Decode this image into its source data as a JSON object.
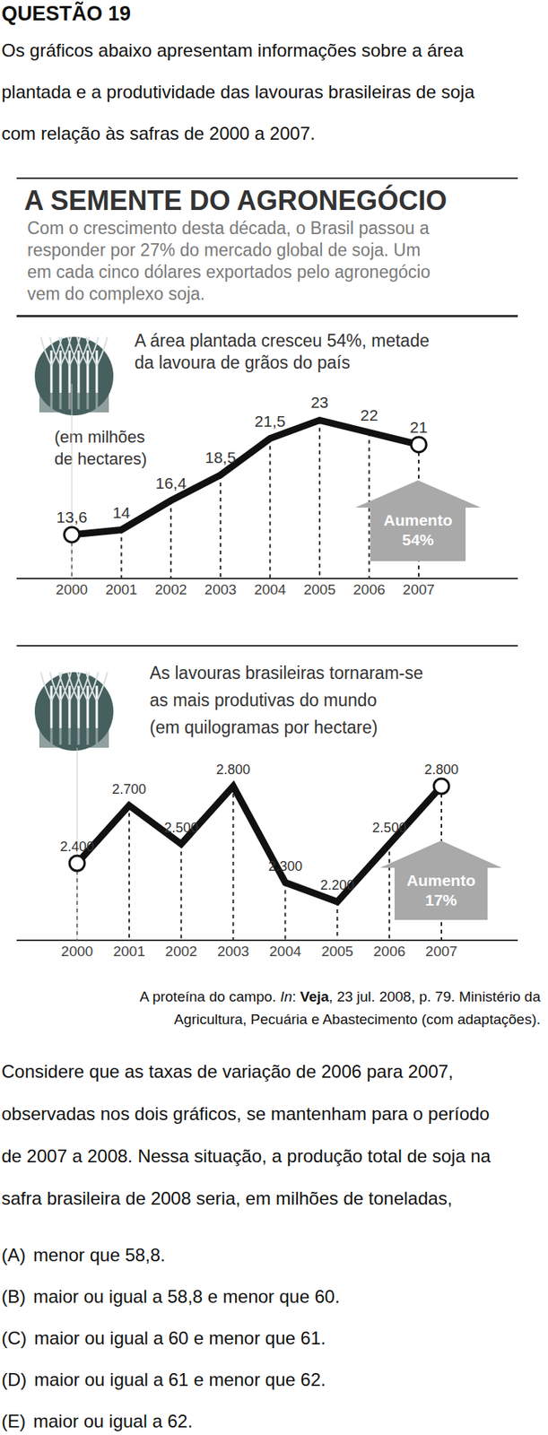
{
  "question": {
    "number": "QUESTÃO 19",
    "intro_lines": [
      "Os gráficos abaixo apresentam informações sobre a área",
      "plantada e a produtividade das lavouras brasileiras de soja",
      "com relação às safras de 2000 a 2007."
    ],
    "prompt_lines": [
      "Considere que as taxas de variação de 2006 para 2007,",
      "observadas nos dois gráficos, se mantenham para o período",
      "de 2007 a 2008. Nessa situação, a produção total de soja na",
      "safra brasileira de 2008 seria, em milhões de toneladas,"
    ],
    "options": [
      {
        "letter": "(A)",
        "text": "menor que 58,8."
      },
      {
        "letter": "(B)",
        "text": "maior ou igual a 58,8 e menor que 60."
      },
      {
        "letter": "(C)",
        "text": "maior ou igual a 60 e menor que 61."
      },
      {
        "letter": "(D)",
        "text": "maior ou igual a 61 e menor que 62."
      },
      {
        "letter": "(E)",
        "text": "maior ou igual a 62."
      }
    ]
  },
  "figure": {
    "title": "A SEMENTE DO AGRONEGÓCIO",
    "subtitle_lines": [
      "Com o crescimento desta década, o Brasil passou a",
      "responder por 27% do mercado global de soja. Um",
      "em cada cinco dólares exportados pelo agronegócio",
      "vem do complexo soja."
    ],
    "source": {
      "before": "A proteína do campo. ",
      "in": "In",
      "colon": ": ",
      "journal": "Veja",
      "after": ", 23 jul. 2008, p. 79. Ministério da",
      "line2": "Agricultura, Pecuária e Abastecimento (com adaptações)."
    }
  },
  "chart_data": [
    {
      "type": "line",
      "title_lines": [
        "A área plantada cresceu 54%, metade",
        "da lavoura de grãos do país"
      ],
      "unit_lines": [
        "(em milhões",
        "de hectares)"
      ],
      "categories": [
        "2000",
        "2001",
        "2002",
        "2003",
        "2004",
        "2005",
        "2006",
        "2007"
      ],
      "values": [
        13.6,
        14,
        16.4,
        18.5,
        21.5,
        23,
        22,
        21
      ],
      "value_labels": [
        "13,6",
        "14",
        "16,4",
        "18,5",
        "21,5",
        "23",
        "22",
        "21"
      ],
      "ylim": [
        10,
        26
      ],
      "yticks": [],
      "tick_labels": "x",
      "data_labels": true,
      "color": "#111111",
      "marker": "circle",
      "annotation": {
        "label": "Aumento",
        "value_text": "54%"
      }
    },
    {
      "type": "line",
      "title_lines": [
        "As lavouras brasileiras tornaram-se",
        "as mais produtivas do mundo",
        "(em quilogramas por hectare)"
      ],
      "categories": [
        "2000",
        "2001",
        "2002",
        "2003",
        "2004",
        "2005",
        "2006",
        "2007"
      ],
      "values": [
        2400,
        2700,
        2500,
        2800,
        2300,
        2200,
        2500,
        2800
      ],
      "value_labels": [
        "2.400",
        "2.700",
        "2.500",
        "2.800",
        "2.300",
        "2.200",
        "2.500",
        "2.800"
      ],
      "ylim": [
        2000,
        3000
      ],
      "yticks": [],
      "tick_labels": "x",
      "data_labels": true,
      "color": "#111111",
      "marker": "circle",
      "annotation": {
        "label": "Aumento",
        "value_text": "17%"
      }
    }
  ]
}
